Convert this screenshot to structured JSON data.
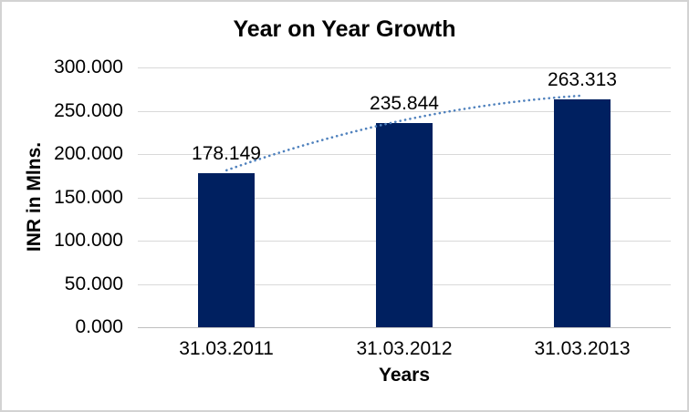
{
  "chart_data": {
    "type": "bar",
    "title": "Year on Year Growth",
    "xlabel": "Years",
    "ylabel": "INR in Mlns.",
    "categories": [
      "31.03.2011",
      "31.03.2012",
      "31.03.2013"
    ],
    "values": [
      178.149,
      235.844,
      263.313
    ],
    "value_labels": [
      "178.149",
      "235.844",
      "263.313"
    ],
    "y_ticks": [
      "300.000",
      "250.000",
      "200.000",
      "150.000",
      "100.000",
      "50.000",
      "0.000"
    ],
    "ylim": [
      0,
      300
    ],
    "grid": true,
    "legend_position": "none",
    "bar_color": "#002060",
    "gridline_color": "#d9d9d9",
    "axis_line_color": "#bfbfbf",
    "trendline": {
      "type": "polynomial-dotted",
      "color": "#4f81bd"
    }
  }
}
